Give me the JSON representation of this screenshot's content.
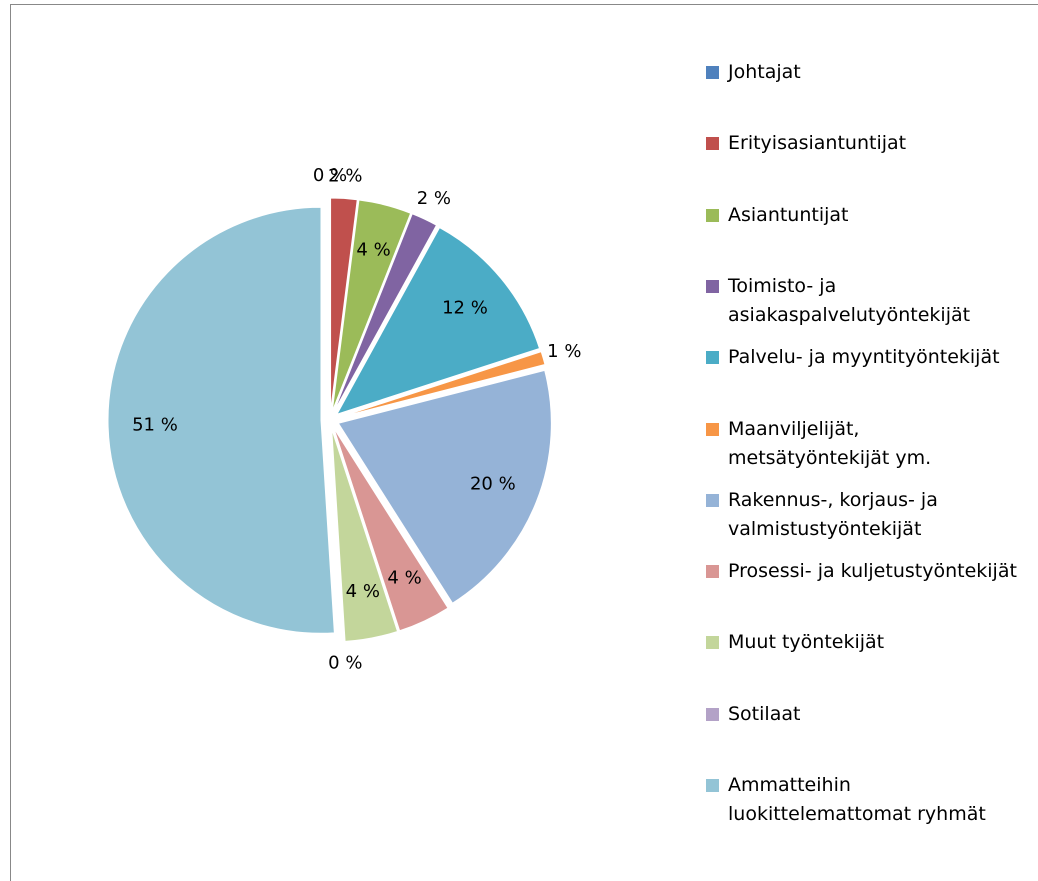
{
  "chart_data": {
    "type": "pie",
    "categories": [
      "Johtajat",
      "Erityisasiantuntijat",
      "Asiantuntijat",
      "Toimisto- ja asiakaspalvelutyöntekijät",
      "Palvelu- ja myyntityöntekijät",
      "Maanviljelijät, metsätyöntekijät ym.",
      "Rakennus-, korjaus- ja valmistustyöntekijät",
      "Prosessi- ja kuljetustyöntekijät",
      "Muut työntekijät",
      "Sotilaat",
      "Ammatteihin luokittelemattomat ryhmät"
    ],
    "values": [
      0,
      2,
      4,
      2,
      12,
      1,
      20,
      4,
      4,
      0,
      51
    ],
    "value_labels": [
      "0 %",
      "2 %",
      "4 %",
      "2 %",
      "12 %",
      "1 %",
      "20 %",
      "4 %",
      "4 %",
      "0 %",
      "51 %"
    ],
    "colors": [
      "#4f81bd",
      "#c0504d",
      "#9bbb59",
      "#8064a2",
      "#4bacc6",
      "#f79646",
      "#95b3d7",
      "#d99694",
      "#c3d69b",
      "#b3a2c7",
      "#93c4d6"
    ],
    "legend": "right"
  }
}
